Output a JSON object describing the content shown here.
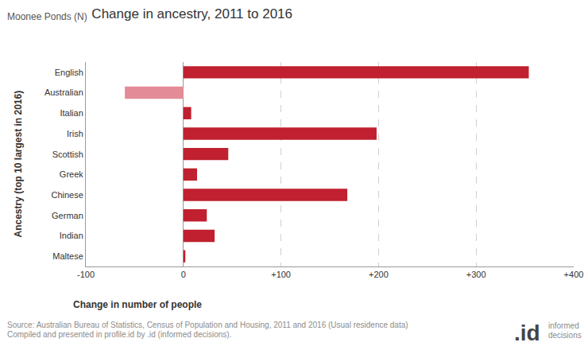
{
  "chart_data": {
    "type": "bar",
    "orientation": "horizontal",
    "title": "Change in ancestry, 2011 to 2016",
    "subtitle": "Moonee Ponds (N)",
    "x_label": "Change in number of people",
    "y_label": "Ancestry (top 10 largest in 2016)",
    "categories": [
      "English",
      "Australian",
      "Italian",
      "Irish",
      "Scottish",
      "Greek",
      "Chinese",
      "German",
      "Indian",
      "Maltese"
    ],
    "values": [
      354,
      -60,
      8,
      198,
      46,
      14,
      168,
      24,
      32,
      2
    ],
    "colors": [
      "#c0202f",
      "#e38b97",
      "#c0202f",
      "#c0202f",
      "#c0202f",
      "#c0202f",
      "#c0202f",
      "#c0202f",
      "#c0202f",
      "#c0202f"
    ],
    "xlim": [
      -100,
      400
    ],
    "xticks": [
      -100,
      0,
      {
        "value": 100,
        "label": "+100"
      },
      {
        "value": 200,
        "label": "+200"
      },
      {
        "value": 300,
        "label": "+300"
      },
      {
        "value": 400,
        "label": "+400"
      }
    ],
    "grid": true,
    "annotations": [
      "Source: Australian Bureau of Statistics, Census of Population and Housing, 2011 and 2016 (Usual residence data)",
      "Compiled and presented in profile.id by .id (informed decisions).",
      ".id",
      "informed",
      "decisions"
    ]
  }
}
